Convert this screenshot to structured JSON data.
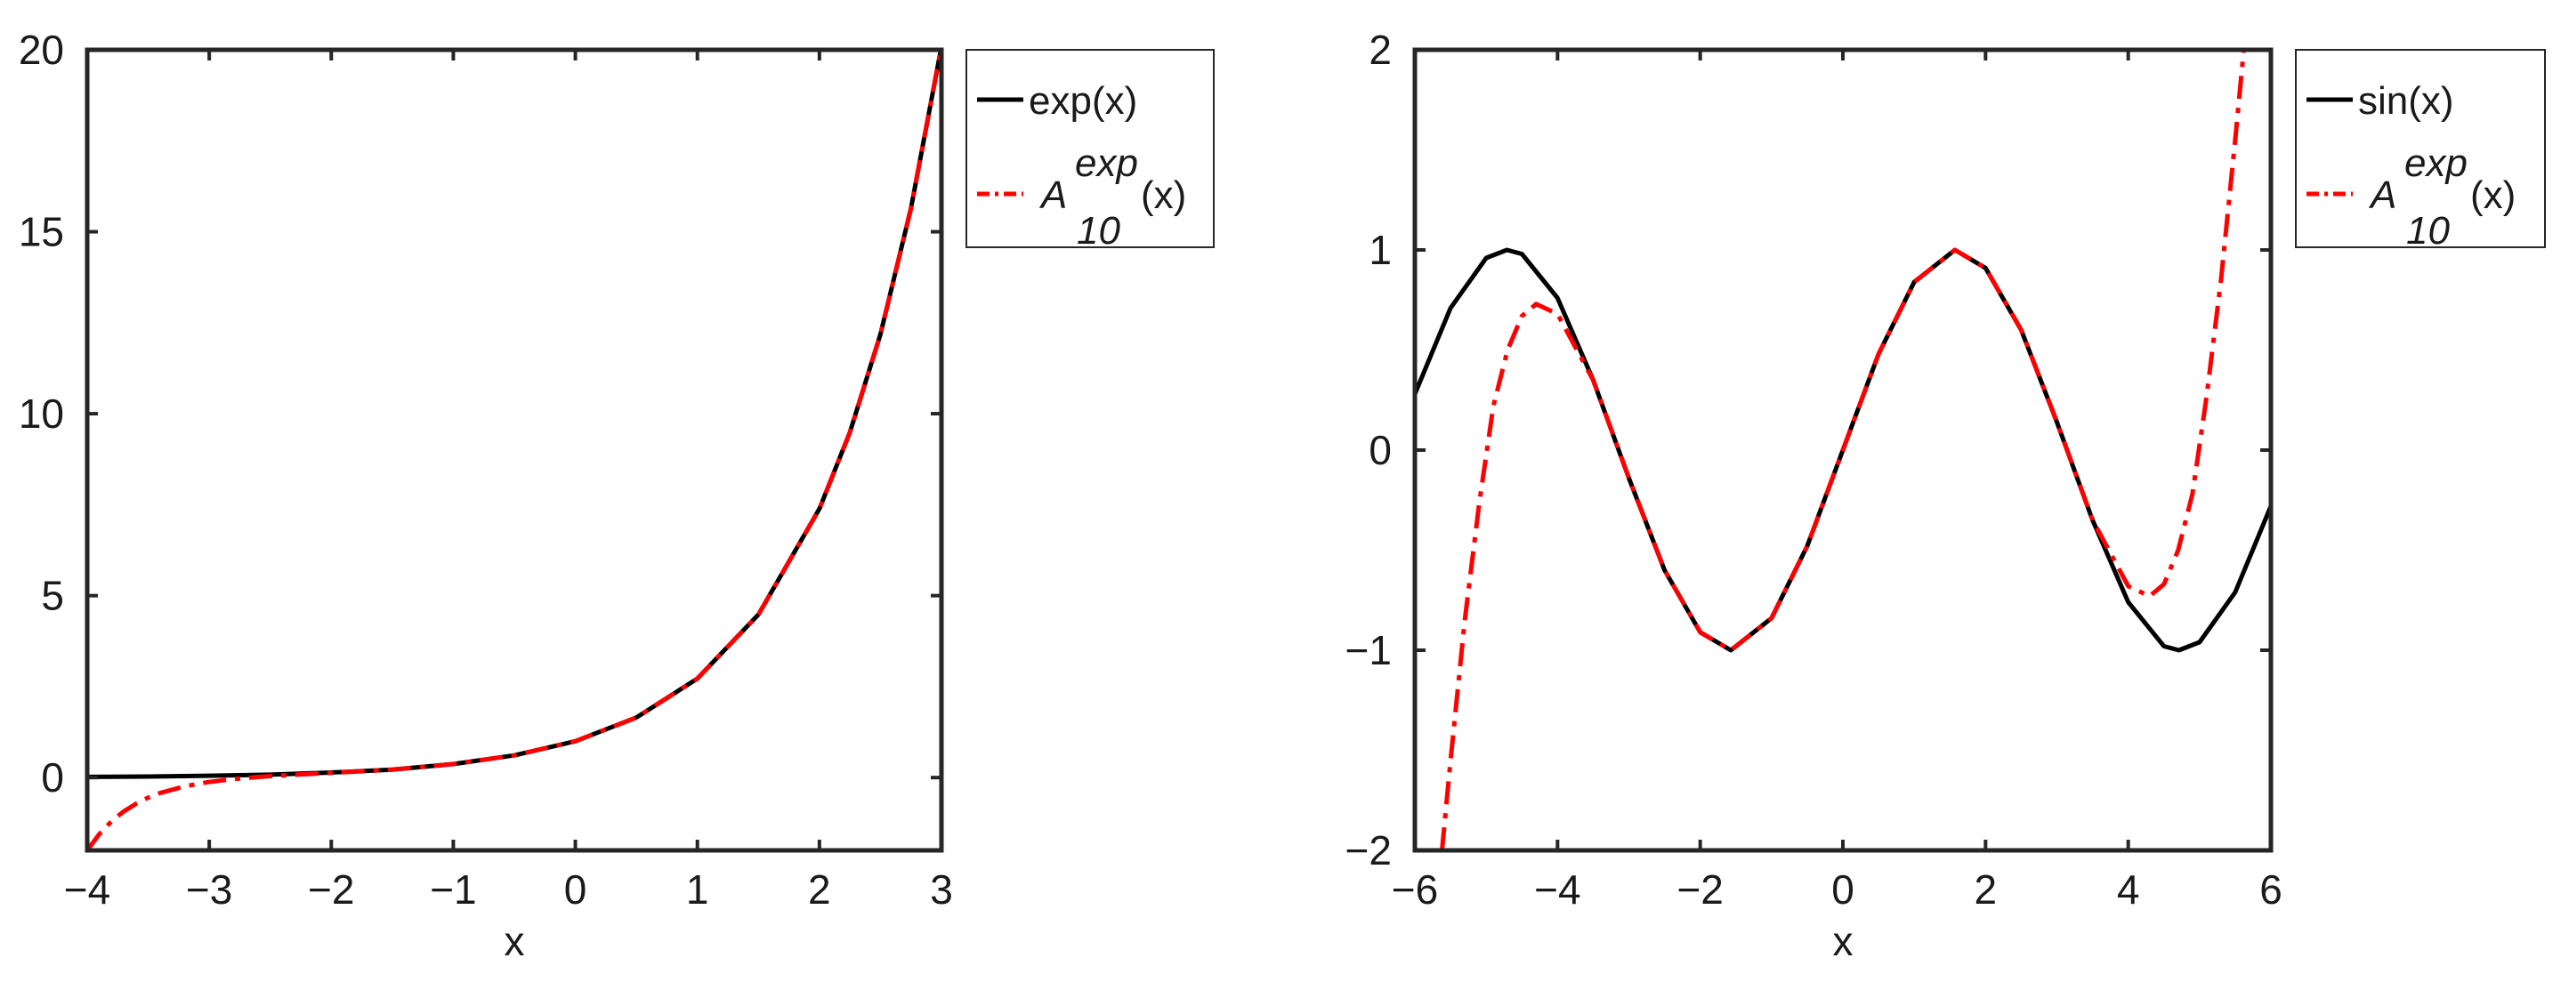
{
  "chart_data": [
    {
      "type": "line",
      "xlabel": "x",
      "ylabel": "",
      "xlim": [
        -4,
        3
      ],
      "ylim": [
        -2,
        20
      ],
      "xticks": [
        -4,
        -3,
        -2,
        -1,
        0,
        1,
        2,
        3
      ],
      "yticks": [
        0,
        5,
        10,
        15,
        20
      ],
      "xtick_labels": [
        "−4",
        "−3",
        "−2",
        "−1",
        "0",
        "1",
        "2",
        "3"
      ],
      "ytick_labels": [
        "0",
        "5",
        "10",
        "15",
        "20"
      ],
      "grid": false,
      "legend_placement": "outside-top-right",
      "series": [
        {
          "name": "exp(x)",
          "style": "solid",
          "color": "#000000",
          "x": [
            -4,
            -3.5,
            -3,
            -2.5,
            -2,
            -1.5,
            -1,
            -0.5,
            0,
            0.5,
            1,
            1.5,
            2,
            2.25,
            2.5,
            2.75,
            3
          ],
          "y": [
            0.02,
            0.03,
            0.05,
            0.08,
            0.14,
            0.22,
            0.37,
            0.61,
            1.0,
            1.65,
            2.72,
            4.48,
            7.39,
            9.49,
            12.18,
            15.64,
            20.09
          ]
        },
        {
          "name": "A_10^exp(x)",
          "label_base": "A",
          "label_sup": "exp",
          "label_sub": "10",
          "label_suffix": "(x)",
          "style": "dashdot",
          "color": "#ff0000",
          "x": [
            -4,
            -3.9,
            -3.8,
            -3.7,
            -3.6,
            -3.5,
            -3.4,
            -3.2,
            -3,
            -2.8,
            -2.5,
            -2,
            -1.5,
            -1,
            -0.5,
            0,
            0.5,
            1,
            1.5,
            2,
            2.25,
            2.5,
            2.75,
            3
          ],
          "y": [
            -2.0,
            -1.55,
            -1.2,
            -0.93,
            -0.72,
            -0.55,
            -0.42,
            -0.24,
            -0.12,
            -0.04,
            0.04,
            0.13,
            0.22,
            0.37,
            0.61,
            1.0,
            1.65,
            2.72,
            4.48,
            7.39,
            9.49,
            12.18,
            15.64,
            20.09
          ]
        }
      ]
    },
    {
      "type": "line",
      "xlabel": "x",
      "ylabel": "",
      "xlim": [
        -6,
        6
      ],
      "ylim": [
        -2,
        2
      ],
      "xticks": [
        -6,
        -4,
        -2,
        0,
        2,
        4,
        6
      ],
      "yticks": [
        -2,
        -1,
        0,
        1,
        2
      ],
      "xtick_labels": [
        "−6",
        "−4",
        "−2",
        "0",
        "2",
        "4",
        "6"
      ],
      "ytick_labels": [
        "−2",
        "−1",
        "0",
        "1",
        "2"
      ],
      "grid": false,
      "legend_placement": "outside-top-right",
      "series": [
        {
          "name": "sin(x)",
          "style": "solid",
          "color": "#000000",
          "x": [
            -6,
            -5.5,
            -5,
            -4.71,
            -4.5,
            -4,
            -3.5,
            -3,
            -2.5,
            -2,
            -1.57,
            -1,
            -0.5,
            0,
            0.5,
            1,
            1.57,
            2,
            2.5,
            3,
            3.5,
            4,
            4.5,
            4.71,
            5,
            5.5,
            6
          ],
          "y": [
            0.28,
            0.71,
            0.96,
            1.0,
            0.98,
            0.76,
            0.35,
            -0.14,
            -0.6,
            -0.91,
            -1.0,
            -0.84,
            -0.48,
            0.0,
            0.48,
            0.84,
            1.0,
            0.91,
            0.6,
            0.14,
            -0.35,
            -0.76,
            -0.98,
            -1.0,
            -0.96,
            -0.71,
            -0.28
          ]
        },
        {
          "name": "A_10^exp(x)",
          "label_base": "A",
          "label_sup": "exp",
          "label_sub": "10",
          "label_suffix": "(x)",
          "style": "dashdot",
          "color": "#ff0000",
          "x": [
            -5.62,
            -5.5,
            -5.3,
            -5.1,
            -4.9,
            -4.7,
            -4.5,
            -4.3,
            -4,
            -3.5,
            -3,
            -2.5,
            -2,
            -1.57,
            -1,
            -0.5,
            0,
            0.5,
            1,
            1.57,
            2,
            2.5,
            3,
            3.5,
            4,
            4.3,
            4.5,
            4.7,
            4.9,
            5.1,
            5.3,
            5.5,
            5.62
          ],
          "y": [
            -2.0,
            -1.55,
            -0.85,
            -0.27,
            0.22,
            0.5,
            0.67,
            0.73,
            0.68,
            0.35,
            -0.14,
            -0.6,
            -0.91,
            -1.0,
            -0.84,
            -0.48,
            0.0,
            0.48,
            0.84,
            1.0,
            0.91,
            0.6,
            0.14,
            -0.35,
            -0.68,
            -0.73,
            -0.67,
            -0.5,
            -0.22,
            0.27,
            0.85,
            1.55,
            2.0
          ]
        }
      ]
    }
  ]
}
